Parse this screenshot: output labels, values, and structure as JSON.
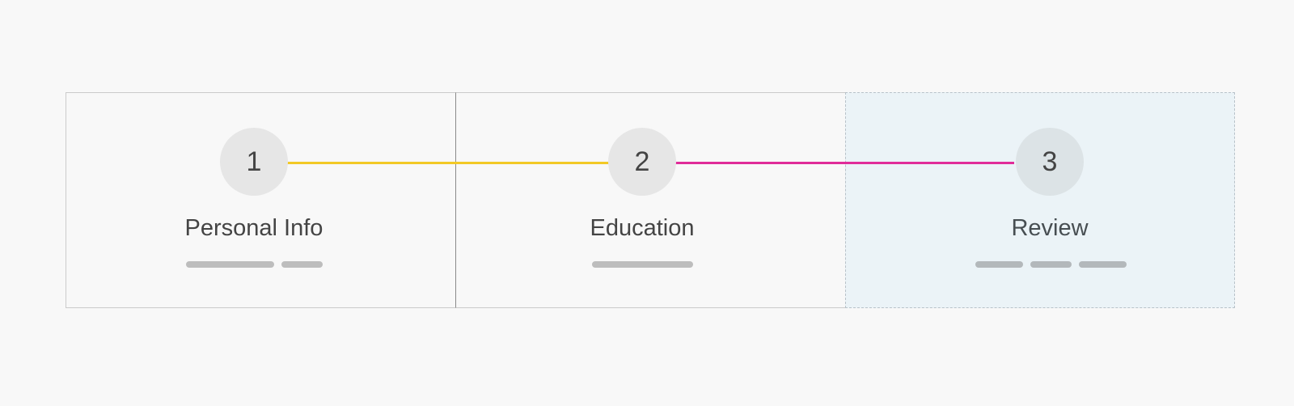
{
  "colors": {
    "connector_done": "#f2c926",
    "connector_active": "#e02c99"
  },
  "steps": [
    {
      "number": "1",
      "label": "Personal Info",
      "state": "completed"
    },
    {
      "number": "2",
      "label": "Education",
      "state": "completed"
    },
    {
      "number": "3",
      "label": "Review",
      "state": "current"
    }
  ]
}
